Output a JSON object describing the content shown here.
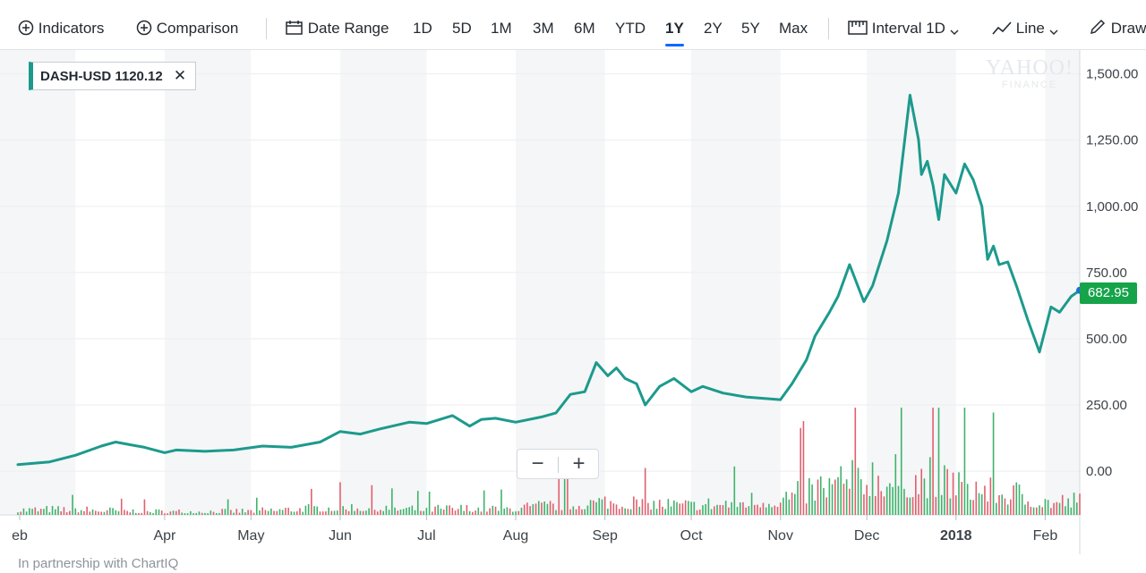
{
  "toolbar": {
    "indicators": "Indicators",
    "comparison": "Comparison",
    "date_range": "Date Range",
    "ranges": [
      "1D",
      "5D",
      "1M",
      "3M",
      "6M",
      "YTD",
      "1Y",
      "2Y",
      "5Y",
      "Max"
    ],
    "selected_range": "1Y",
    "interval_label": "Interval",
    "interval_value": "1D",
    "chart_type": "Line",
    "draw": "Draw"
  },
  "legend": {
    "symbol_price": "DASH-USD 1120.12",
    "close_glyph": "✕",
    "color": "#1c9a8d"
  },
  "last_price": "682.95",
  "watermark": {
    "line1": "YAHOO!",
    "line2": "FINANCE"
  },
  "zoom": {
    "minus": "−",
    "plus": "+"
  },
  "footer": "In partnership with ChartIQ",
  "colors": {
    "line": "#1c9a8d",
    "up_volume": "#3eb36b",
    "down_volume": "#e0606e",
    "last_price_badge": "#16a34a"
  },
  "chart_data": {
    "type": "line",
    "title": "DASH-USD",
    "x_tick_labels": [
      "eb",
      "Apr",
      "May",
      "Jun",
      "Jul",
      "Aug",
      "Sep",
      "Oct",
      "Nov",
      "Dec",
      "2018",
      "Feb"
    ],
    "y_tick_labels": [
      "1,500.00",
      "1,250.00",
      "1,000.00",
      "750.00",
      "500.00",
      "250.00",
      "0.00"
    ],
    "ylim": [
      -165,
      1590
    ],
    "grid": true,
    "series": [
      {
        "name": "DASH-USD",
        "x": [
          "2017-02-09",
          "2017-02-20",
          "2017-03-01",
          "2017-03-10",
          "2017-03-15",
          "2017-03-20",
          "2017-03-25",
          "2017-04-01",
          "2017-04-05",
          "2017-04-15",
          "2017-04-25",
          "2017-05-05",
          "2017-05-15",
          "2017-05-25",
          "2017-06-01",
          "2017-06-08",
          "2017-06-15",
          "2017-06-25",
          "2017-07-01",
          "2017-07-10",
          "2017-07-16",
          "2017-07-20",
          "2017-07-25",
          "2017-08-01",
          "2017-08-10",
          "2017-08-15",
          "2017-08-20",
          "2017-08-25",
          "2017-08-29",
          "2017-09-02",
          "2017-09-05",
          "2017-09-08",
          "2017-09-12",
          "2017-09-15",
          "2017-09-20",
          "2017-09-25",
          "2017-10-01",
          "2017-10-05",
          "2017-10-12",
          "2017-10-20",
          "2017-11-01",
          "2017-11-05",
          "2017-11-10",
          "2017-11-13",
          "2017-11-18",
          "2017-11-21",
          "2017-11-25",
          "2017-11-30",
          "2017-12-03",
          "2017-12-08",
          "2017-12-12",
          "2017-12-16",
          "2017-12-19",
          "2017-12-20",
          "2017-12-22",
          "2017-12-24",
          "2017-12-26",
          "2017-12-28",
          "2018-01-01",
          "2018-01-04",
          "2018-01-07",
          "2018-01-10",
          "2018-01-12",
          "2018-01-14",
          "2018-01-16",
          "2018-01-19",
          "2018-01-22",
          "2018-01-26",
          "2018-01-30",
          "2018-02-03",
          "2018-02-06",
          "2018-02-10",
          "2018-02-13"
        ],
        "values": [
          25,
          35,
          60,
          95,
          110,
          100,
          90,
          70,
          80,
          75,
          80,
          95,
          90,
          110,
          150,
          140,
          160,
          185,
          180,
          210,
          170,
          195,
          200,
          185,
          205,
          220,
          290,
          300,
          410,
          360,
          390,
          350,
          330,
          250,
          320,
          350,
          300,
          320,
          295,
          280,
          270,
          330,
          420,
          510,
          600,
          660,
          780,
          640,
          700,
          870,
          1050,
          1420,
          1250,
          1120,
          1170,
          1080,
          950,
          1120,
          1050,
          1160,
          1100,
          1000,
          800,
          850,
          780,
          790,
          700,
          570,
          450,
          620,
          600,
          660,
          682.95
        ]
      }
    ],
    "volume": {
      "note": "daily volume bars, relative scale (no axis)",
      "x": [
        "2017-03",
        "2017-04",
        "2017-05",
        "2017-06",
        "2017-07",
        "2017-08",
        "2017-09",
        "2017-10",
        "2017-11",
        "2017-12",
        "2018-01",
        "2018-02"
      ],
      "relative_values": [
        0.08,
        0.05,
        0.06,
        0.12,
        0.09,
        0.1,
        0.2,
        0.14,
        0.25,
        0.6,
        0.5,
        0.2
      ]
    }
  }
}
